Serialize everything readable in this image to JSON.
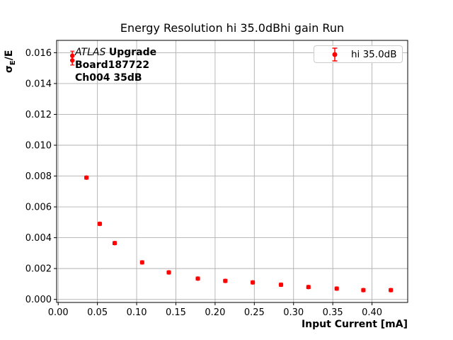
{
  "figure": {
    "background": "#ffffff",
    "frame_color": "#000000"
  },
  "chart_data": {
    "type": "scatter",
    "title": "Energy Resolution hi 35.0dBhi gain Run",
    "xlabel": "Input Current [mA]",
    "ylabel": "σE/E",
    "ylabel_parts": {
      "sigma": "σ",
      "sub": "E",
      "rest": "/E"
    },
    "xlim": [
      -0.002,
      0.4455
    ],
    "ylim": [
      -0.0002,
      0.0168
    ],
    "grid": true,
    "grid_color": "#b0b0b0",
    "tick_color": "#000000",
    "xticks": {
      "values": [
        0.0,
        0.05,
        0.1,
        0.15,
        0.2,
        0.25,
        0.3,
        0.35,
        0.4
      ],
      "labels": [
        "0.00",
        "0.05",
        "0.10",
        "0.15",
        "0.20",
        "0.25",
        "0.30",
        "0.35",
        "0.40"
      ]
    },
    "yticks": {
      "values": [
        0.0,
        0.002,
        0.004,
        0.006,
        0.008,
        0.01,
        0.012,
        0.014,
        0.016
      ],
      "labels": [
        "0.000",
        "0.002",
        "0.004",
        "0.006",
        "0.008",
        "0.010",
        "0.012",
        "0.014",
        "0.016"
      ]
    },
    "series": [
      {
        "name": "hi 35.0dB",
        "color": "#ff0000",
        "marker": "circle-with-errorbar",
        "points": [
          {
            "x": 0.018,
            "y": 0.0158,
            "yerr": 0.0003
          },
          {
            "x": 0.018,
            "y": 0.0155,
            "yerr": 0.0003
          },
          {
            "x": 0.036,
            "y": 0.0079,
            "yerr": 0.0001
          },
          {
            "x": 0.053,
            "y": 0.0049,
            "yerr": 0.0001
          },
          {
            "x": 0.072,
            "y": 0.00365,
            "yerr": 0.0001
          },
          {
            "x": 0.107,
            "y": 0.0024,
            "yerr": 0.0001
          },
          {
            "x": 0.141,
            "y": 0.00175,
            "yerr": 0.0001
          },
          {
            "x": 0.178,
            "y": 0.00135,
            "yerr": 0.0001
          },
          {
            "x": 0.213,
            "y": 0.0012,
            "yerr": 0.0001
          },
          {
            "x": 0.248,
            "y": 0.0011,
            "yerr": 0.0001
          },
          {
            "x": 0.284,
            "y": 0.00095,
            "yerr": 0.0001
          },
          {
            "x": 0.319,
            "y": 0.0008,
            "yerr": 0.0001
          },
          {
            "x": 0.355,
            "y": 0.0007,
            "yerr": 0.0001
          },
          {
            "x": 0.389,
            "y": 0.0006,
            "yerr": 0.0001
          },
          {
            "x": 0.424,
            "y": 0.0006,
            "yerr": 0.0001
          }
        ]
      }
    ],
    "legend": {
      "position": "upper-right",
      "entries": [
        "hi 35.0dB"
      ]
    },
    "annotation": {
      "line1_italic": "ATLAS ",
      "line1_bold": "Upgrade",
      "line2": "Board187722",
      "line3": "Ch004 35dB"
    }
  }
}
